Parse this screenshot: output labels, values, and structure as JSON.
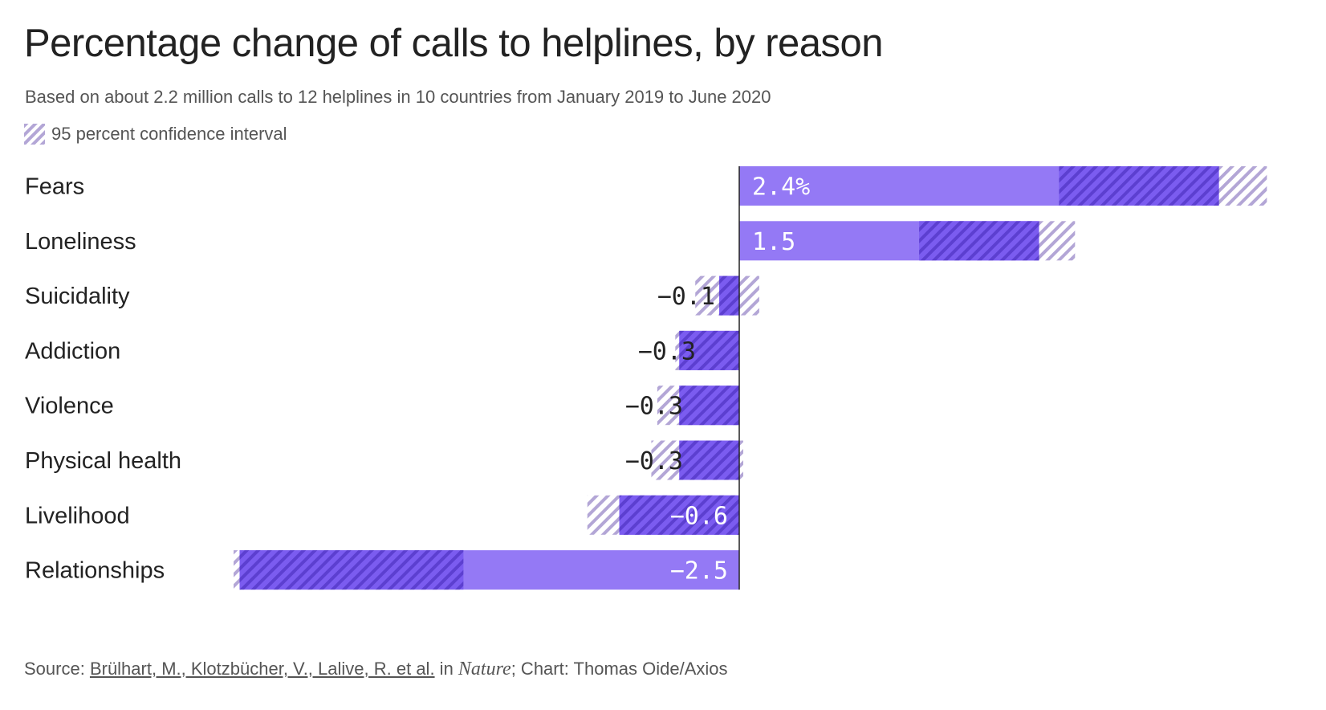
{
  "title": "Percentage change of calls to helplines, by reason",
  "subtitle": "Based on about 2.2 million calls to 12 helplines in 10 countries from January 2019 to June 2020",
  "legend": {
    "ci_label": "95 percent confidence interval"
  },
  "source": {
    "prefix": "Source: ",
    "authors": "Brülhart, M., Klotzbücher, V., Lalive, R. et al.",
    "in_text": " in ",
    "journal": "Nature",
    "suffix": "; Chart: Thomas Oide/Axios"
  },
  "colors": {
    "bar": "#9479f5",
    "overlap": "#6d4ee0",
    "hatch_bg": "#ffffff",
    "hatch_line": "#b3a6d6",
    "axis": "#222222",
    "label_on_bar": "#ffffff",
    "label_off_bar": "#222222"
  },
  "chart_data": {
    "type": "bar",
    "orientation": "horizontal",
    "unit": "%",
    "categories": [
      "Fears",
      "Loneliness",
      "Suicidality",
      "Addiction",
      "Violence",
      "Physical health",
      "Livelihood",
      "Relationships"
    ],
    "values": [
      2.4,
      1.5,
      -0.1,
      -0.3,
      -0.3,
      -0.3,
      -0.6,
      -2.5
    ],
    "value_labels": [
      "2.4%",
      "1.5",
      "−0.1",
      "−0.3",
      "−0.3",
      "−0.3",
      "−0.6",
      "−2.5"
    ],
    "ci_low": [
      1.6,
      0.9,
      -0.22,
      -0.32,
      -0.41,
      -0.44,
      -0.76,
      -2.53
    ],
    "ci_high": [
      2.64,
      1.68,
      0.1,
      0.0,
      0.0,
      0.02,
      0.0,
      -1.38
    ],
    "xlim": [
      -2.55,
      2.65
    ],
    "zero_line": true,
    "grid": false,
    "legend_position": "top-left"
  }
}
